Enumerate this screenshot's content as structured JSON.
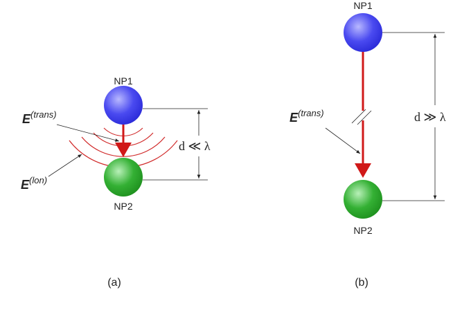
{
  "panel_a": {
    "np1": "NP1",
    "np2": "NP2",
    "e_trans": {
      "symbol": "E",
      "superscript": "(trans)"
    },
    "e_lon": {
      "symbol": "E",
      "superscript": "(lon)"
    },
    "distance": "d ≪ λ",
    "caption": "(a)"
  },
  "panel_b": {
    "np1": "NP1",
    "np2": "NP2",
    "e_trans": {
      "symbol": "E",
      "superscript": "(trans)"
    },
    "distance": "d ≫ λ",
    "caption": "(b)"
  }
}
